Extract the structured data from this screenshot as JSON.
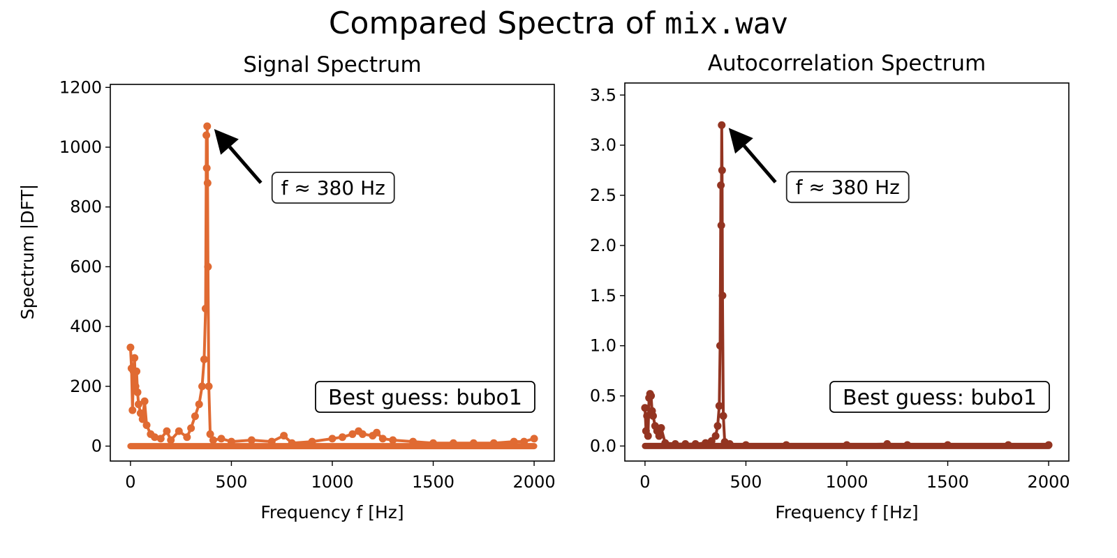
{
  "figure": {
    "title_prefix": "Compared Spectra of ",
    "title_file": "mix.wav"
  },
  "chart_data": [
    {
      "type": "line",
      "title": "Signal Spectrum",
      "xlabel": "Frequency f [Hz]",
      "ylabel": "Spectrum |DFT|",
      "xlim": [
        -100,
        2100
      ],
      "ylim": [
        -50,
        1210
      ],
      "xticks": [
        0,
        500,
        1000,
        1500,
        2000
      ],
      "yticks": [
        0,
        200,
        400,
        600,
        800,
        1000,
        1200
      ],
      "xtick_labels": [
        "0",
        "500",
        "1000",
        "1500",
        "2000"
      ],
      "ytick_labels": [
        "0",
        "200",
        "400",
        "600",
        "800",
        "1000",
        "1200"
      ],
      "color": "#e06a32",
      "marker": "circle",
      "grid": false,
      "x": [
        0,
        5,
        10,
        15,
        20,
        25,
        30,
        35,
        40,
        50,
        60,
        70,
        80,
        100,
        120,
        150,
        180,
        200,
        240,
        280,
        300,
        320,
        340,
        355,
        365,
        372,
        376,
        378,
        380,
        382,
        384,
        388,
        395,
        410,
        450,
        500,
        600,
        700,
        760,
        800,
        900,
        1000,
        1050,
        1100,
        1130,
        1150,
        1200,
        1220,
        1250,
        1300,
        1400,
        1500,
        1600,
        1700,
        1800,
        1900,
        1950,
        2000
      ],
      "y": [
        330,
        260,
        120,
        250,
        295,
        200,
        250,
        180,
        140,
        110,
        90,
        150,
        70,
        40,
        30,
        25,
        50,
        20,
        50,
        30,
        60,
        100,
        140,
        200,
        290,
        460,
        1040,
        930,
        1070,
        880,
        600,
        200,
        40,
        20,
        25,
        15,
        20,
        15,
        35,
        10,
        15,
        25,
        30,
        40,
        50,
        40,
        35,
        45,
        25,
        20,
        15,
        10,
        10,
        10,
        10,
        15,
        15,
        25
      ],
      "annotation": {
        "text": "f ≈ 380 Hz",
        "point": [
          380,
          1070
        ],
        "text_at": [
          750,
          820
        ]
      },
      "legend_box": {
        "text": "Best guess: bubo1",
        "location": "lower right"
      }
    },
    {
      "type": "line",
      "title": "Autocorrelation Spectrum",
      "xlabel": "Frequency f [Hz]",
      "ylabel": "",
      "xlim": [
        -100,
        2100
      ],
      "ylim": [
        -0.15,
        3.62
      ],
      "xticks": [
        0,
        500,
        1000,
        1500,
        2000
      ],
      "yticks": [
        0,
        0.5,
        1.0,
        1.5,
        2.0,
        2.5,
        3.0,
        3.5
      ],
      "xtick_labels": [
        "0",
        "500",
        "1000",
        "1500",
        "2000"
      ],
      "ytick_labels": [
        "0.0",
        "0.5",
        "1.0",
        "1.5",
        "2.0",
        "2.5",
        "3.0",
        "3.5"
      ],
      "color": "#933421",
      "marker": "circle",
      "grid": false,
      "x": [
        0,
        5,
        10,
        15,
        20,
        25,
        30,
        35,
        40,
        50,
        60,
        70,
        80,
        100,
        150,
        200,
        250,
        300,
        330,
        350,
        360,
        368,
        372,
        376,
        378,
        380,
        382,
        384,
        388,
        395,
        420,
        500,
        700,
        1000,
        1200,
        1300,
        1500,
        1800,
        2000
      ],
      "y": [
        0.38,
        0.15,
        0.3,
        0.1,
        0.48,
        0.52,
        0.5,
        0.35,
        0.3,
        0.2,
        0.15,
        0.1,
        0.18,
        0.03,
        0.02,
        0.02,
        0.02,
        0.03,
        0.05,
        0.1,
        0.2,
        0.4,
        1.0,
        2.6,
        2.2,
        3.2,
        2.75,
        1.5,
        0.3,
        0.04,
        0.02,
        0.01,
        0.01,
        0.01,
        0.02,
        0.01,
        0.01,
        0.01,
        0.01
      ],
      "annotation": {
        "text": "f ≈ 380 Hz",
        "point": [
          380,
          3.2
        ],
        "text_at": [
          750,
          2.45
        ]
      },
      "legend_box": {
        "text": "Best guess: bubo1",
        "location": "lower right"
      }
    }
  ]
}
